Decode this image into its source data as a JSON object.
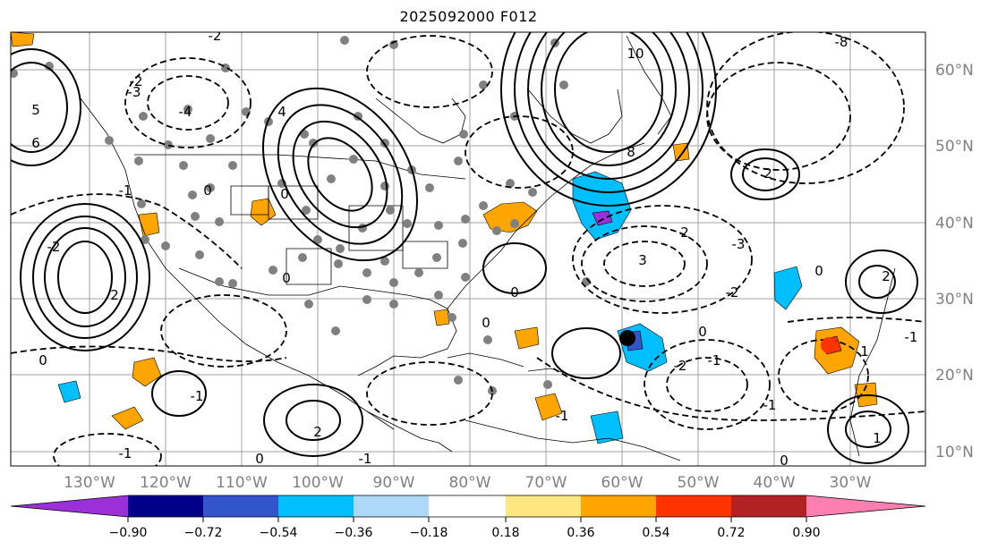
{
  "title": "2025092000 F012",
  "lat_labels": [
    "60°N",
    "50°N",
    "40°N",
    "30°N",
    "20°N",
    "10°N"
  ],
  "lon_labels": [
    "130°W",
    "120°W",
    "110°W",
    "100°W",
    "90°W",
    "80°W",
    "70°W",
    "60°W",
    "50°W",
    "40°W",
    "30°W"
  ],
  "colorbar": {
    "ticks": [
      "−0.90",
      "−0.72",
      "−0.54",
      "−0.36",
      "−0.18",
      "0.18",
      "0.36",
      "0.54",
      "0.72",
      "0.90"
    ],
    "colors": [
      "#9b30d9",
      "#00008b",
      "#3355cc",
      "#00bfff",
      "#add8f7",
      "#ffffff",
      "#ffe680",
      "#ffa500",
      "#ff3300",
      "#b22222",
      "#ff80b0"
    ]
  },
  "contour_labels": [
    "0",
    "2",
    "-1",
    "-2",
    "3",
    "-3",
    "4",
    "-4",
    "5",
    "6",
    "8",
    "10",
    "-8",
    "1",
    "-1",
    "0",
    "0",
    "-2",
    "-3",
    "-2",
    "2",
    "-1",
    "0",
    "0",
    "2",
    "-2",
    "2",
    "-1",
    "-1",
    "0",
    "2",
    "-1",
    "1",
    "-1",
    "0",
    "0",
    "0",
    "0",
    "-2",
    "-1"
  ]
}
